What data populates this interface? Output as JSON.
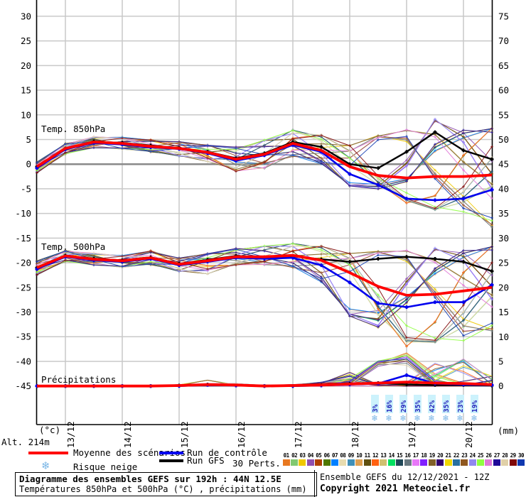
{
  "chart": {
    "corner_labels": {
      "temp_unit": "(°c)",
      "precip_unit": "(mm)",
      "altitude": "Alt. 214m"
    },
    "panel_labels": {
      "t850": "Temp. 850hPa",
      "t500": "Temp. 500hPa",
      "precip": "Précipitations"
    },
    "left_ticks": [
      30,
      25,
      20,
      15,
      10,
      5,
      0,
      -5,
      -10,
      -15,
      -20,
      -25,
      -30,
      -35,
      -40,
      -45
    ],
    "right_ticks": [
      75,
      70,
      65,
      60,
      55,
      50,
      45,
      40,
      35,
      30,
      25,
      20,
      15,
      10,
      5,
      0
    ],
    "x_labels": [
      "13/12",
      "14/12",
      "15/12",
      "16/12",
      "17/12",
      "18/12",
      "19/12",
      "20/12"
    ],
    "grid_color": "#c9c9c9",
    "zero_line_color": "#8a8a8a",
    "axis_color": "#000000",
    "series_colors": {
      "mean": "#ff0000",
      "control": "#0000ee",
      "gfs": "#000000"
    },
    "snow_color": "#7ab6e6",
    "snow_label_color": "#2222bb",
    "snow_label_bg": "#ccf2fc"
  },
  "chart_data": {
    "type": "line",
    "title": "Diagramme des ensembles GEFS sur 192h : 44N 12.5E",
    "subtitle": "Températures 850hPa et 500hPa (°C) , précipitations (mm)",
    "run": "Ensemble GEFS du 12/12/2021 - 12Z",
    "x_hours": [
      0,
      12,
      24,
      36,
      48,
      60,
      72,
      84,
      96,
      108,
      120,
      132,
      144,
      156,
      168,
      180,
      192
    ],
    "x_day_labels": [
      "13/12",
      "14/12",
      "15/12",
      "16/12",
      "17/12",
      "18/12",
      "19/12",
      "20/12"
    ],
    "ylim_left": [
      -45,
      30
    ],
    "ylim_right": [
      0,
      80
    ],
    "panels": [
      {
        "id": "t850",
        "label": "Temp. 850hPa",
        "unit": "°C",
        "series": [
          {
            "name": "Moyenne des scénarios",
            "values": [
              -0.5,
              3.2,
              4.5,
              4.2,
              3.6,
              3.2,
              2.4,
              1.0,
              2.0,
              4.2,
              2.8,
              -0.5,
              -2.3,
              -2.8,
              -2.5,
              -2.5,
              -2.2
            ]
          },
          {
            "name": "Run de contrôle",
            "values": [
              -0.8,
              3.0,
              4.3,
              4.0,
              3.4,
              3.1,
              2.2,
              0.7,
              1.8,
              3.9,
              2.5,
              -2.0,
              -4.2,
              -7.0,
              -7.3,
              -7.0,
              -5.2
            ]
          },
          {
            "name": "Run GFS",
            "values": [
              -0.5,
              3.2,
              4.6,
              4.3,
              3.8,
              3.2,
              2.5,
              1.2,
              2.2,
              4.5,
              3.5,
              0.0,
              -0.8,
              2.5,
              6.5,
              2.8,
              1.0
            ]
          }
        ],
        "envelope": {
          "min": [
            -1.8,
            2.0,
            3.3,
            3.0,
            2.4,
            1.6,
            0.5,
            -1.5,
            -1.0,
            1.5,
            0.0,
            -4.5,
            -6.0,
            -8.0,
            -9.5,
            -9.8,
            -13.0
          ],
          "max": [
            0.5,
            4.2,
            5.6,
            5.5,
            5.0,
            4.6,
            4.0,
            3.6,
            5.0,
            7.0,
            6.0,
            5.0,
            6.0,
            7.5,
            9.8,
            7.5,
            7.5
          ]
        }
      },
      {
        "id": "t500",
        "label": "Temp. 500hPa",
        "unit": "°C",
        "series": [
          {
            "name": "Moyenne des scénarios",
            "values": [
              -21.0,
              -18.6,
              -19.3,
              -19.6,
              -19.0,
              -20.3,
              -19.6,
              -18.8,
              -18.8,
              -18.5,
              -19.5,
              -22.0,
              -24.8,
              -26.6,
              -26.4,
              -25.7,
              -25.0
            ]
          },
          {
            "name": "Run de contrôle",
            "values": [
              -21.3,
              -18.8,
              -19.5,
              -19.8,
              -19.2,
              -20.5,
              -19.8,
              -19.0,
              -19.2,
              -19.0,
              -20.5,
              -24.0,
              -28.2,
              -29.0,
              -28.0,
              -28.0,
              -24.5
            ]
          },
          {
            "name": "Run GFS",
            "values": [
              -21.0,
              -18.5,
              -19.2,
              -19.5,
              -18.9,
              -20.2,
              -19.4,
              -18.6,
              -18.9,
              -18.7,
              -19.3,
              -19.8,
              -19.2,
              -18.8,
              -19.2,
              -19.8,
              -21.7
            ]
          }
        ],
        "envelope": {
          "min": [
            -22.5,
            -19.8,
            -20.5,
            -21.0,
            -20.5,
            -21.8,
            -22.3,
            -20.5,
            -20.5,
            -21.0,
            -24.0,
            -31.0,
            -36.0,
            -37.2,
            -36.5,
            -36.0,
            -34.0
          ],
          "max": [
            -19.5,
            -17.5,
            -18.0,
            -18.5,
            -17.5,
            -19.0,
            -18.0,
            -17.0,
            -16.5,
            -16.0,
            -16.5,
            -17.0,
            -17.5,
            -17.0,
            -16.5,
            -17.0,
            -16.5
          ]
        }
      },
      {
        "id": "precip",
        "label": "Précipitations",
        "unit": "mm",
        "series": [
          {
            "name": "Moyenne des scénarios",
            "values": [
              0,
              0,
              0,
              0,
              0,
              0.1,
              0.3,
              0.2,
              0,
              0.1,
              0.2,
              0.4,
              0.6,
              0.8,
              0.6,
              0.5,
              0.3
            ]
          },
          {
            "name": "Run de contrôle",
            "values": [
              0,
              0,
              0,
              0,
              0,
              0,
              0.2,
              0.1,
              0,
              0,
              0.1,
              0.3,
              0.5,
              2.2,
              0.5,
              0.3,
              0.2
            ]
          },
          {
            "name": "Run GFS",
            "values": [
              0,
              0,
              0,
              0,
              0,
              0.1,
              0.3,
              0.1,
              0,
              0,
              0.2,
              0.5,
              0.6,
              0.3,
              0.2,
              0.2,
              0.1
            ]
          }
        ],
        "envelope": {
          "min": [
            0,
            0,
            0,
            0,
            0,
            0,
            0,
            0,
            0,
            0,
            0,
            0,
            0,
            0,
            0,
            0,
            0
          ],
          "max": [
            0,
            0,
            0,
            0,
            0,
            0.3,
            1.2,
            0.5,
            0.2,
            0.3,
            0.8,
            3.5,
            5.5,
            7.0,
            5.0,
            5.5,
            2.0
          ]
        }
      }
    ],
    "snow_risk": {
      "hours": [
        142.5,
        148.5,
        154.5,
        160.5,
        166.5,
        172.5,
        178.5,
        184.5
      ],
      "percent_labels": [
        "3%",
        "16%",
        "29%",
        "35%",
        "42%",
        "35%",
        "23%",
        "19%"
      ]
    }
  },
  "legend": {
    "mean": "Moyenne des scénarios",
    "control": "Run de contrôle",
    "gfs": "Run GFS",
    "perts_label": "30 Perts.",
    "snow": "Risque neige"
  },
  "perts": {
    "numbers": [
      "01",
      "02",
      "03",
      "04",
      "05",
      "06",
      "07",
      "08",
      "09",
      "10",
      "11",
      "12",
      "13",
      "14",
      "15",
      "16",
      "17",
      "18",
      "19",
      "20",
      "21",
      "22",
      "23",
      "24",
      "25",
      "26",
      "27",
      "28",
      "29",
      "30"
    ],
    "colors": [
      "#e87820",
      "#80c870",
      "#f0c800",
      "#9050b0",
      "#b04000",
      "#507800",
      "#0080ff",
      "#e8dcb0",
      "#4090b8",
      "#e0a050",
      "#605010",
      "#ff6010",
      "#d0c070",
      "#00e060",
      "#204858",
      "#687880",
      "#e878f8",
      "#8020ff",
      "#806028",
      "#300070",
      "#f0d800",
      "#2870a0",
      "#905820",
      "#9088f0",
      "#90ff40",
      "#e078d8",
      "#200898",
      "#e0d0a8",
      "#800808",
      "#1038b0"
    ]
  },
  "footer": {
    "title": "Diagramme des ensembles GEFS sur 192h : 44N 12.5E",
    "subtitle": "Températures 850hPa et 500hPa (°C) , précipitations (mm)",
    "run_info": "Ensemble GEFS du 12/12/2021 - 12Z",
    "copyright": "Copyright 2021 Meteociel.fr"
  }
}
